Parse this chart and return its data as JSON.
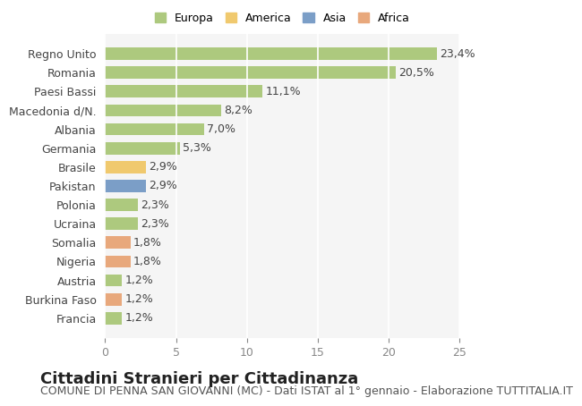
{
  "categories": [
    "Francia",
    "Burkina Faso",
    "Austria",
    "Nigeria",
    "Somalia",
    "Ucraina",
    "Polonia",
    "Pakistan",
    "Brasile",
    "Germania",
    "Albania",
    "Macedonia d/N.",
    "Paesi Bassi",
    "Romania",
    "Regno Unito"
  ],
  "values": [
    1.2,
    1.2,
    1.2,
    1.8,
    1.8,
    2.3,
    2.3,
    2.9,
    2.9,
    5.3,
    7.0,
    8.2,
    11.1,
    20.5,
    23.4
  ],
  "labels": [
    "1,2%",
    "1,2%",
    "1,2%",
    "1,8%",
    "1,8%",
    "2,3%",
    "2,3%",
    "2,9%",
    "2,9%",
    "5,3%",
    "7,0%",
    "8,2%",
    "11,1%",
    "20,5%",
    "23,4%"
  ],
  "colors": [
    "#adc97e",
    "#e8a87c",
    "#adc97e",
    "#e8a87c",
    "#e8a87c",
    "#adc97e",
    "#adc97e",
    "#7b9ec7",
    "#f0c96e",
    "#adc97e",
    "#adc97e",
    "#adc97e",
    "#adc97e",
    "#adc97e",
    "#adc97e"
  ],
  "continent": [
    "Europa",
    "Africa",
    "Europa",
    "Africa",
    "Africa",
    "Europa",
    "Europa",
    "Asia",
    "America",
    "Europa",
    "Europa",
    "Europa",
    "Europa",
    "Europa",
    "Europa"
  ],
  "legend_labels": [
    "Europa",
    "America",
    "Asia",
    "Africa"
  ],
  "legend_colors": [
    "#adc97e",
    "#f0c96e",
    "#7b9ec7",
    "#e8a87c"
  ],
  "title": "Cittadini Stranieri per Cittadinanza",
  "subtitle": "COMUNE DI PENNA SAN GIOVANNI (MC) - Dati ISTAT al 1° gennaio - Elaborazione TUTTITALIA.IT",
  "xlim": [
    0,
    25
  ],
  "xticks": [
    0,
    5,
    10,
    15,
    20,
    25
  ],
  "bg_color": "#ffffff",
  "bar_bg_color": "#f5f5f5",
  "grid_color": "#ffffff",
  "title_fontsize": 13,
  "subtitle_fontsize": 9,
  "label_fontsize": 9,
  "tick_fontsize": 9
}
